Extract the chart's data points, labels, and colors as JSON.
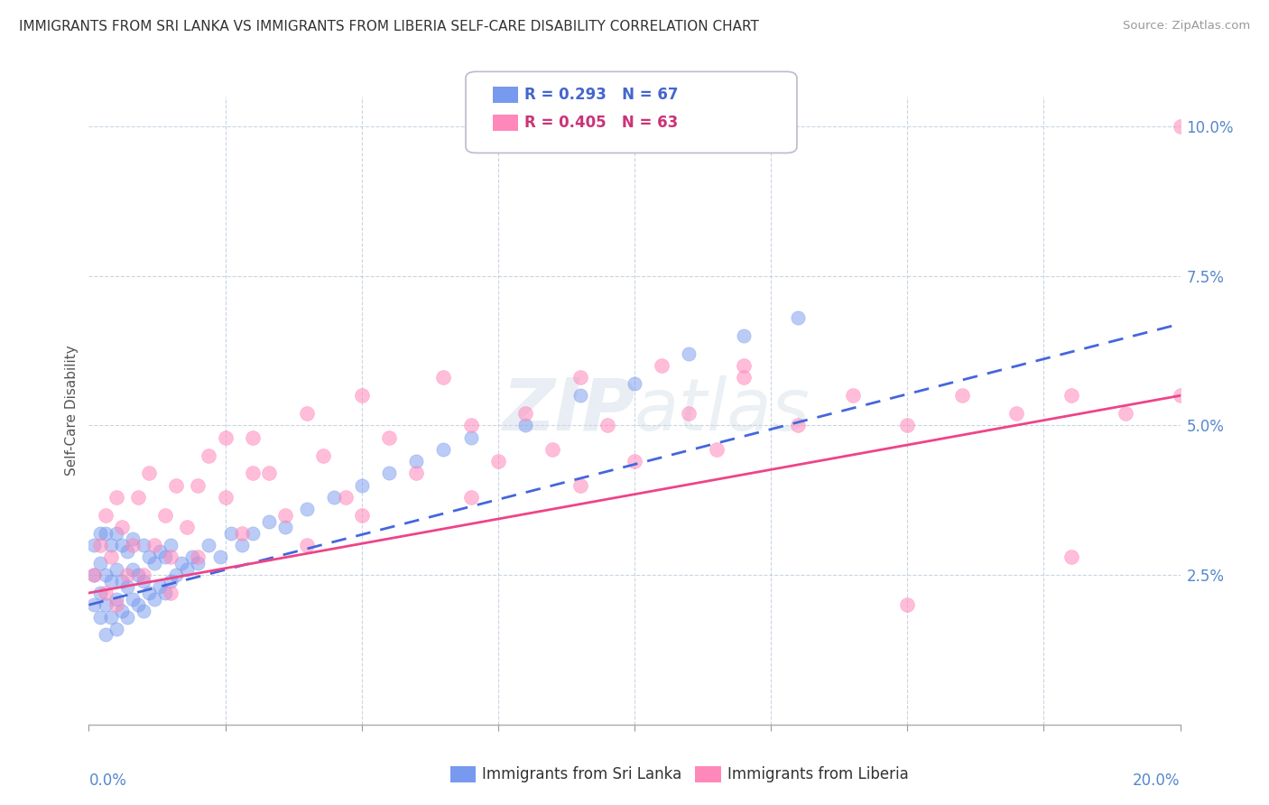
{
  "title": "IMMIGRANTS FROM SRI LANKA VS IMMIGRANTS FROM LIBERIA SELF-CARE DISABILITY CORRELATION CHART",
  "source": "Source: ZipAtlas.com",
  "ylabel": "Self-Care Disability",
  "sri_lanka_color": "#7799ee",
  "liberia_color": "#ff88bb",
  "sri_lanka_line_color": "#4466dd",
  "liberia_line_color": "#ee4488",
  "watermark": "ZIPatlas",
  "xlim": [
    0.0,
    0.2
  ],
  "ylim": [
    0.0,
    0.105
  ],
  "yticks": [
    0.0,
    0.025,
    0.05,
    0.075,
    0.1
  ],
  "yticklabels": [
    "",
    "2.5%",
    "5.0%",
    "7.5%",
    "10.0%"
  ],
  "sri_lanka_scatter_x": [
    0.001,
    0.001,
    0.001,
    0.002,
    0.002,
    0.002,
    0.002,
    0.003,
    0.003,
    0.003,
    0.003,
    0.004,
    0.004,
    0.004,
    0.005,
    0.005,
    0.005,
    0.005,
    0.006,
    0.006,
    0.006,
    0.007,
    0.007,
    0.007,
    0.008,
    0.008,
    0.008,
    0.009,
    0.009,
    0.01,
    0.01,
    0.01,
    0.011,
    0.011,
    0.012,
    0.012,
    0.013,
    0.013,
    0.014,
    0.014,
    0.015,
    0.015,
    0.016,
    0.017,
    0.018,
    0.019,
    0.02,
    0.022,
    0.024,
    0.026,
    0.028,
    0.03,
    0.033,
    0.036,
    0.04,
    0.045,
    0.05,
    0.055,
    0.06,
    0.065,
    0.07,
    0.08,
    0.09,
    0.1,
    0.11,
    0.12,
    0.13
  ],
  "sri_lanka_scatter_y": [
    0.02,
    0.025,
    0.03,
    0.018,
    0.022,
    0.027,
    0.032,
    0.015,
    0.02,
    0.025,
    0.032,
    0.018,
    0.024,
    0.03,
    0.016,
    0.021,
    0.026,
    0.032,
    0.019,
    0.024,
    0.03,
    0.018,
    0.023,
    0.029,
    0.021,
    0.026,
    0.031,
    0.02,
    0.025,
    0.019,
    0.024,
    0.03,
    0.022,
    0.028,
    0.021,
    0.027,
    0.023,
    0.029,
    0.022,
    0.028,
    0.024,
    0.03,
    0.025,
    0.027,
    0.026,
    0.028,
    0.027,
    0.03,
    0.028,
    0.032,
    0.03,
    0.032,
    0.034,
    0.033,
    0.036,
    0.038,
    0.04,
    0.042,
    0.044,
    0.046,
    0.048,
    0.05,
    0.055,
    0.057,
    0.062,
    0.065,
    0.068
  ],
  "liberia_scatter_x": [
    0.001,
    0.002,
    0.003,
    0.003,
    0.004,
    0.005,
    0.005,
    0.006,
    0.007,
    0.008,
    0.009,
    0.01,
    0.011,
    0.012,
    0.014,
    0.015,
    0.016,
    0.018,
    0.02,
    0.022,
    0.025,
    0.028,
    0.03,
    0.033,
    0.036,
    0.04,
    0.043,
    0.047,
    0.05,
    0.055,
    0.06,
    0.065,
    0.07,
    0.075,
    0.08,
    0.085,
    0.09,
    0.095,
    0.1,
    0.105,
    0.11,
    0.115,
    0.12,
    0.13,
    0.14,
    0.15,
    0.16,
    0.17,
    0.18,
    0.19,
    0.2,
    0.2,
    0.18,
    0.15,
    0.12,
    0.09,
    0.07,
    0.05,
    0.04,
    0.03,
    0.025,
    0.02,
    0.015
  ],
  "liberia_scatter_y": [
    0.025,
    0.03,
    0.022,
    0.035,
    0.028,
    0.02,
    0.038,
    0.033,
    0.025,
    0.03,
    0.038,
    0.025,
    0.042,
    0.03,
    0.035,
    0.022,
    0.04,
    0.033,
    0.028,
    0.045,
    0.038,
    0.032,
    0.048,
    0.042,
    0.035,
    0.052,
    0.045,
    0.038,
    0.055,
    0.048,
    0.042,
    0.058,
    0.05,
    0.044,
    0.052,
    0.046,
    0.058,
    0.05,
    0.044,
    0.06,
    0.052,
    0.046,
    0.058,
    0.05,
    0.055,
    0.05,
    0.055,
    0.052,
    0.055,
    0.052,
    0.055,
    0.1,
    0.028,
    0.02,
    0.06,
    0.04,
    0.038,
    0.035,
    0.03,
    0.042,
    0.048,
    0.04,
    0.028
  ],
  "sl_trend_x0": 0.0,
  "sl_trend_y0": 0.02,
  "sl_trend_x1": 0.2,
  "sl_trend_y1": 0.067,
  "lib_trend_x0": 0.0,
  "lib_trend_y0": 0.022,
  "lib_trend_x1": 0.2,
  "lib_trend_y1": 0.055
}
